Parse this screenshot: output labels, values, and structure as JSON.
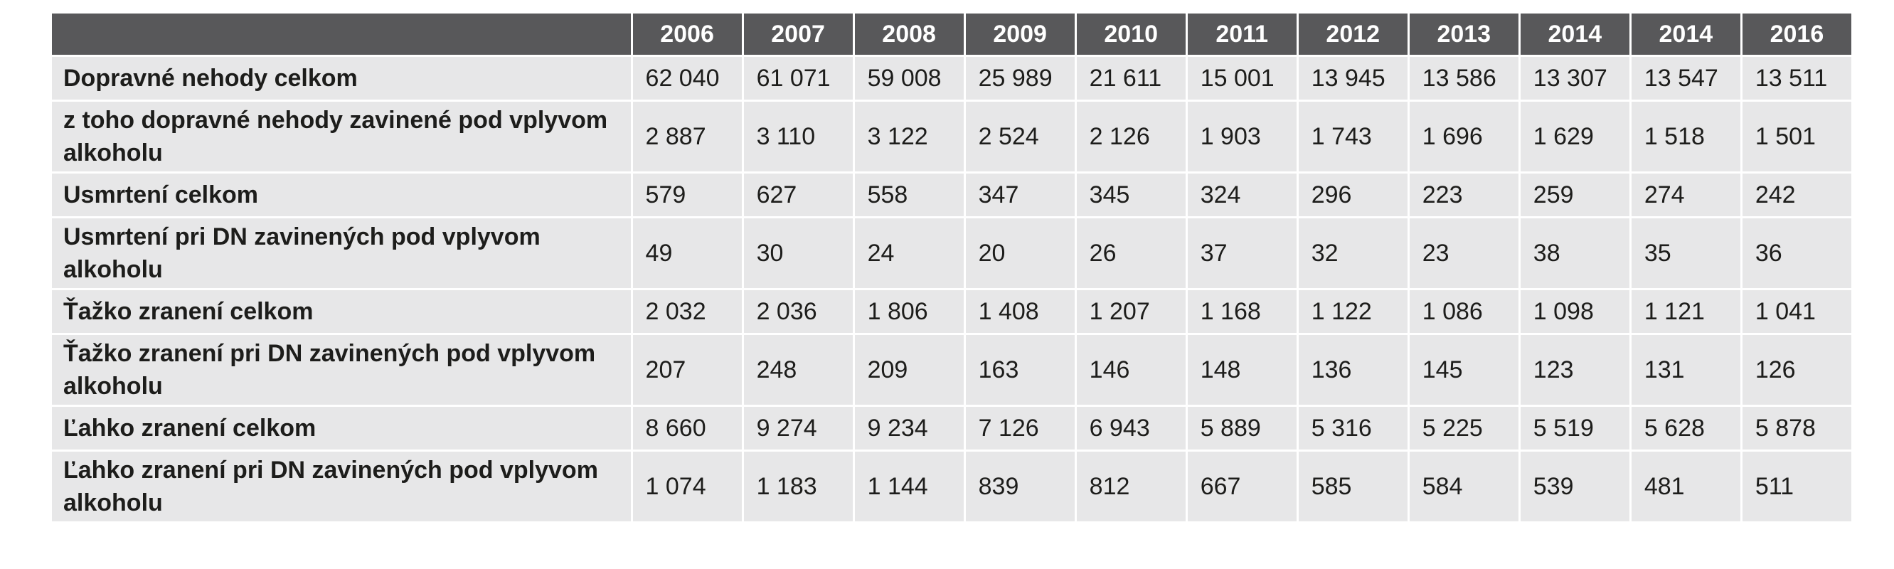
{
  "table": {
    "header": {
      "corner": "",
      "years": [
        "2006",
        "2007",
        "2008",
        "2009",
        "2010",
        "2011",
        "2012",
        "2013",
        "2014",
        "2014",
        "2016"
      ]
    },
    "rows": [
      {
        "label": "Dopravné nehody celkom",
        "values": [
          "62 040",
          "61 071",
          "59 008",
          "25 989",
          "21 611",
          "15 001",
          "13 945",
          "13 586",
          "13 307",
          "13 547",
          "13 511"
        ]
      },
      {
        "label": "z toho dopravné nehody zavinené pod vplyvom alkoholu",
        "values": [
          "2 887",
          "3 110",
          "3 122",
          "2 524",
          "2 126",
          "1 903",
          "1 743",
          "1 696",
          "1 629",
          "1 518",
          "1 501"
        ]
      },
      {
        "label": "Usmrtení celkom",
        "values": [
          "579",
          "627",
          "558",
          "347",
          "345",
          "324",
          "296",
          "223",
          "259",
          "274",
          "242"
        ]
      },
      {
        "label": "Usmrtení pri DN zavinených pod vplyvom alkoholu",
        "values": [
          "49",
          "30",
          "24",
          "20",
          "26",
          "37",
          "32",
          "23",
          "38",
          "35",
          "36"
        ]
      },
      {
        "label": "Ťažko zranení celkom",
        "values": [
          "2 032",
          "2 036",
          "1 806",
          "1 408",
          "1 207",
          "1 168",
          "1 122",
          "1 086",
          "1 098",
          "1 121",
          "1 041"
        ]
      },
      {
        "label": "Ťažko zranení pri DN zavinených pod vplyvom alkoholu",
        "values": [
          "207",
          "248",
          "209",
          "163",
          "146",
          "148",
          "136",
          "145",
          "123",
          "131",
          "126"
        ]
      },
      {
        "label": "Ľahko zranení celkom",
        "values": [
          "8 660",
          "9 274",
          "9 234",
          "7 126",
          "6 943",
          "5 889",
          "5 316",
          "5 225",
          "5 519",
          "5 628",
          "5 878"
        ]
      },
      {
        "label": "Ľahko zranení pri DN zavinených pod vplyvom alkoholu",
        "values": [
          "1 074",
          "1 183",
          "1 144",
          "839",
          "812",
          "667",
          "585",
          "584",
          "539",
          "481",
          "511"
        ]
      }
    ]
  },
  "colors": {
    "header_bg": "#58585a",
    "header_text": "#ffffff",
    "cell_bg": "#e7e7e8",
    "cell_text": "#1d1d1b"
  }
}
